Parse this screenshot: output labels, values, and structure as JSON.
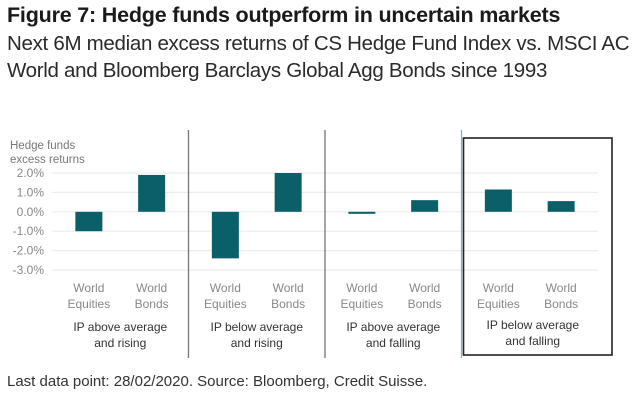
{
  "header": {
    "title": "Figure 7: Hedge funds outperform in uncertain markets",
    "subtitle": "Next 6M median excess returns of CS Hedge Fund Index vs. MSCI AC World and Bloomberg Barclays Global Agg Bonds since 1993"
  },
  "footer": {
    "source": "Last data point: 28/02/2020. Source: Bloomberg, Credit Suisse."
  },
  "colors": {
    "bar": "#0b5f68",
    "grid": "#ececec",
    "divider": "#777777",
    "highlight_box": "#222222",
    "highlight_edge": "#7ab3d6"
  },
  "chart_data": {
    "type": "bar",
    "title": "Figure 7: Hedge funds outperform in uncertain markets",
    "ylabel": [
      "Hedge funds",
      "excess returns"
    ],
    "xlabel": "",
    "ylim": [
      -3.0,
      2.0
    ],
    "yticks": [
      2.0,
      1.0,
      0.0,
      -1.0,
      -2.0,
      -3.0
    ],
    "ytick_labels": [
      "2.0%",
      "1.0%",
      "0.0%",
      "-1.0%",
      "-2.0%",
      "-3.0%"
    ],
    "grid": true,
    "unit": "%",
    "groups": [
      {
        "label": [
          "IP above average",
          "and rising"
        ],
        "highlighted": false,
        "bars": [
          {
            "category": [
              "World",
              "Equities"
            ],
            "value": -1.0
          },
          {
            "category": [
              "World",
              "Bonds"
            ],
            "value": 1.9
          }
        ]
      },
      {
        "label": [
          "IP below average",
          "and rising"
        ],
        "highlighted": false,
        "bars": [
          {
            "category": [
              "World",
              "Equities"
            ],
            "value": -2.4
          },
          {
            "category": [
              "World",
              "Bonds"
            ],
            "value": 2.0
          }
        ]
      },
      {
        "label": [
          "IP above average",
          "and falling"
        ],
        "highlighted": false,
        "bars": [
          {
            "category": [
              "World",
              "Equities"
            ],
            "value": -0.1
          },
          {
            "category": [
              "World",
              "Bonds"
            ],
            "value": 0.6
          }
        ]
      },
      {
        "label": [
          "IP below average",
          "and falling"
        ],
        "highlighted": true,
        "bars": [
          {
            "category": [
              "World",
              "Equities"
            ],
            "value": 1.15
          },
          {
            "category": [
              "World",
              "Bonds"
            ],
            "value": 0.55
          }
        ]
      }
    ]
  }
}
